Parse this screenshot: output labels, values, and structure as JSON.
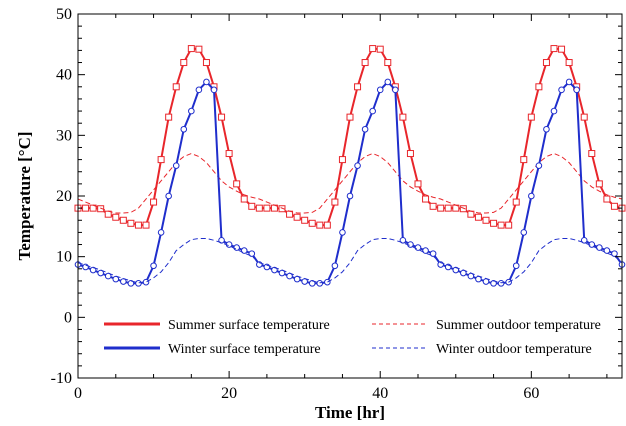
{
  "chart_data": {
    "type": "line",
    "title": "",
    "xlabel": "Time [hr]",
    "ylabel": "Temperature [°C]",
    "xlim": [
      0,
      72
    ],
    "ylim": [
      -10,
      50
    ],
    "xticks": [
      0,
      20,
      40,
      60
    ],
    "yticks": [
      -10,
      0,
      10,
      20,
      30,
      40,
      50
    ],
    "grid": false,
    "legend_position": "bottom",
    "series": [
      {
        "name": "Summer surface temperature",
        "color": "#e8262b",
        "style": "solid",
        "marker": "square",
        "x": [
          0,
          1,
          2,
          3,
          4,
          5,
          6,
          7,
          8,
          9,
          10,
          11,
          12,
          13,
          14,
          15,
          16,
          17,
          18,
          19,
          20,
          21,
          22,
          23
        ],
        "values": [
          18.0,
          18.0,
          18.0,
          17.9,
          17.0,
          16.5,
          16.0,
          15.5,
          15.2,
          15.2,
          19.0,
          26.0,
          33.0,
          38.0,
          42.0,
          44.3,
          44.2,
          42.0,
          38.0,
          33.0,
          27.0,
          22.0,
          19.5,
          18.3
        ],
        "repeat_period": 24
      },
      {
        "name": "Summer outdoor temperature",
        "color": "#e8262b",
        "style": "dashed",
        "marker": "none",
        "x": [
          0,
          1,
          2,
          3,
          4,
          5,
          6,
          7,
          8,
          9,
          10,
          11,
          12,
          13,
          14,
          15,
          16,
          17,
          18,
          19,
          20,
          21,
          22,
          23
        ],
        "values": [
          19.5,
          19.0,
          18.5,
          18.0,
          17.5,
          17.2,
          17.2,
          17.3,
          18.0,
          19.5,
          21.0,
          22.5,
          24.0,
          25.5,
          26.5,
          27.0,
          26.5,
          25.5,
          24.0,
          22.5,
          21.5,
          20.8,
          20.2,
          19.8
        ],
        "repeat_period": 24
      },
      {
        "name": "Winter surface temperature",
        "color": "#1f2ecc",
        "style": "solid",
        "marker": "circle",
        "x": [
          0,
          1,
          2,
          3,
          4,
          5,
          6,
          7,
          8,
          9,
          10,
          11,
          12,
          13,
          14,
          15,
          16,
          17,
          18,
          19,
          20,
          21,
          22,
          23
        ],
        "values": [
          8.7,
          8.3,
          7.8,
          7.3,
          6.8,
          6.3,
          5.9,
          5.6,
          5.6,
          5.8,
          8.5,
          14.0,
          20.0,
          25.0,
          31.0,
          34.0,
          37.5,
          38.8,
          37.5,
          12.7,
          12.0,
          11.5,
          11.0,
          10.5
        ],
        "repeat_period": 24
      },
      {
        "name": "Winter outdoor temperature",
        "color": "#1f2ecc",
        "style": "dashed",
        "marker": "none",
        "x": [
          0,
          1,
          2,
          3,
          4,
          5,
          6,
          7,
          8,
          9,
          10,
          11,
          12,
          13,
          14,
          15,
          16,
          17,
          18,
          19,
          20,
          21,
          22,
          23
        ],
        "values": [
          9.0,
          8.6,
          8.2,
          7.8,
          7.3,
          6.8,
          6.4,
          6.0,
          5.7,
          5.8,
          6.5,
          7.5,
          9.0,
          11.0,
          12.0,
          12.8,
          13.0,
          13.0,
          12.7,
          12.3,
          11.8,
          11.2,
          10.6,
          10.1
        ],
        "repeat_period": 24
      }
    ],
    "legend": [
      {
        "label": "Summer surface temperature",
        "series": 0
      },
      {
        "label": "Summer outdoor temperature",
        "series": 1
      },
      {
        "label": "Winter surface temperature",
        "series": 2
      },
      {
        "label": "Winter outdoor temperature",
        "series": 3
      }
    ]
  }
}
